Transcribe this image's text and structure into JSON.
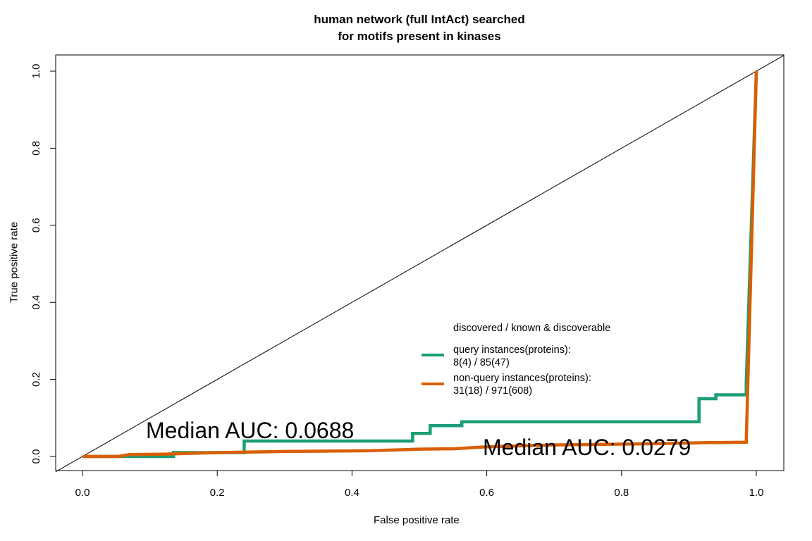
{
  "chart_data": {
    "type": "line",
    "title_line1": "human network (full IntAct) searched",
    "title_line2": "for motifs present in kinases",
    "xlabel": "False positive rate",
    "ylabel": "True positive rate",
    "xlim": [
      0,
      1
    ],
    "ylim": [
      0,
      1
    ],
    "x_ticks": [
      "0.0",
      "0.2",
      "0.4",
      "0.6",
      "0.8",
      "1.0"
    ],
    "y_ticks": [
      "0.0",
      "0.2",
      "0.4",
      "0.6",
      "0.8",
      "1.0"
    ],
    "grid": false,
    "diagonal_reference": true,
    "legend": {
      "header": "discovered / known & discoverable",
      "position": "center-right",
      "entries": [
        {
          "label_line1": "query instances(proteins):",
          "label_line2": "8(4) / 85(47)",
          "color": "#1b9e77"
        },
        {
          "label_line1": "non-query instances(proteins):",
          "label_line2": "31(18) / 971(608)",
          "color": "#d95f02"
        }
      ]
    },
    "annotations": {
      "auc_query": "Median AUC: 0.0688",
      "auc_nonquery": "Median AUC: 0.0279"
    },
    "series": [
      {
        "color": "#1b9e77",
        "step": true,
        "points": [
          [
            0,
            0
          ],
          [
            0.135,
            0
          ],
          [
            0.135,
            0.01
          ],
          [
            0.24,
            0.01
          ],
          [
            0.24,
            0.04
          ],
          [
            0.49,
            0.04
          ],
          [
            0.49,
            0.06
          ],
          [
            0.516,
            0.06
          ],
          [
            0.516,
            0.08
          ],
          [
            0.563,
            0.08
          ],
          [
            0.563,
            0.09
          ],
          [
            0.915,
            0.09
          ],
          [
            0.915,
            0.15
          ],
          [
            0.94,
            0.15
          ],
          [
            0.94,
            0.16
          ],
          [
            0.985,
            0.16
          ],
          [
            0.985,
            0.19
          ],
          [
            1.0,
            1.0
          ]
        ]
      },
      {
        "color": "#d95f02",
        "step": false,
        "points": [
          [
            0,
            0
          ],
          [
            0.053,
            0
          ],
          [
            0.07,
            0.005
          ],
          [
            0.12,
            0.006
          ],
          [
            0.2,
            0.01
          ],
          [
            0.3,
            0.013
          ],
          [
            0.43,
            0.015
          ],
          [
            0.5,
            0.019
          ],
          [
            0.55,
            0.02
          ],
          [
            0.6,
            0.025
          ],
          [
            0.7,
            0.03
          ],
          [
            0.85,
            0.033
          ],
          [
            0.93,
            0.036
          ],
          [
            0.985,
            0.037
          ],
          [
            1.0,
            1.0
          ]
        ]
      }
    ]
  }
}
